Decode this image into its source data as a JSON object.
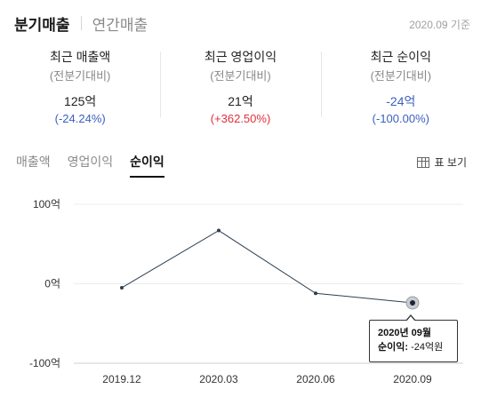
{
  "period_tabs": [
    {
      "label": "분기매출",
      "active": true
    },
    {
      "label": "연간매출",
      "active": false
    }
  ],
  "base_date": "2020.09 기준",
  "summary": [
    {
      "title": "최근 매출액",
      "sub": "(전분기대비)",
      "value": "125억",
      "change": "(-24.24%)",
      "trend": "down"
    },
    {
      "title": "최근 영업이익",
      "sub": "(전분기대비)",
      "value": "21억",
      "change": "(+362.50%)",
      "trend": "up"
    },
    {
      "title": "최근 순이익",
      "sub": "(전분기대비)",
      "value": "-24억",
      "change": "(-100.00%)",
      "trend": "down"
    }
  ],
  "metric_tabs": [
    {
      "label": "매출액",
      "active": false
    },
    {
      "label": "영업이익",
      "active": false
    },
    {
      "label": "순이익",
      "active": true
    }
  ],
  "table_view": {
    "label": "표 보기",
    "icon": "table-icon"
  },
  "colors": {
    "accent_blue": "#3b5fc0",
    "accent_red": "#e0313a",
    "line": "#2c3e50"
  },
  "tooltip": {
    "title": "2020년 09월",
    "label": "순이익:",
    "value": "-24억원"
  },
  "chart_data": {
    "type": "line",
    "categories": [
      "2019.12",
      "2020.03",
      "2020.06",
      "2020.09"
    ],
    "series": [
      {
        "values": [
          -5,
          67,
          -12,
          -24
        ]
      }
    ],
    "ylim": [
      -100,
      100
    ],
    "yticks": [
      "100억",
      "0억",
      "-100억"
    ],
    "highlighted_index": 3,
    "grid": true
  }
}
